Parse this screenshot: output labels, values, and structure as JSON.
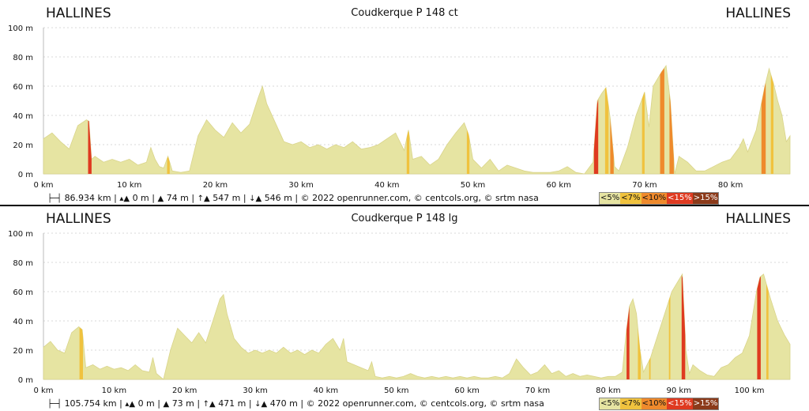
{
  "colors": {
    "fill": "#e6e4a2",
    "stroke": "#d9d48a",
    "grid": "#d8d8d8",
    "axis": "#bbbbbb",
    "grades": [
      "#e6e4a2",
      "#f0c23e",
      "#ef8a2c",
      "#df3a20",
      "#8b3a1a"
    ]
  },
  "legend": [
    {
      "label": "<5%",
      "color": "#e6e4a2",
      "text_color": "#111111"
    },
    {
      "label": "<7%",
      "color": "#f0c23e",
      "text_color": "#111111"
    },
    {
      "label": "<10%",
      "color": "#ef8a2c",
      "text_color": "#111111"
    },
    {
      "label": "<15%",
      "color": "#df3a20",
      "text_color": "#ffffff"
    },
    {
      "label": ">15%",
      "color": "#8b3a1a",
      "text_color": "#ffffff"
    }
  ],
  "chart_data": [
    {
      "type": "area",
      "title": "Coudkerque P 148 ct",
      "start_label": "HALLINES",
      "end_label": "HALLINES",
      "xlim": [
        0,
        86.934
      ],
      "ylim": [
        0,
        100
      ],
      "x_ticks": [
        0,
        10,
        20,
        30,
        40,
        50,
        60,
        70,
        80
      ],
      "x_tick_labels": [
        "0 km",
        "10 km",
        "20 km",
        "30 km",
        "40 km",
        "50 km",
        "60 km",
        "70 km",
        "80 km"
      ],
      "y_ticks": [
        0,
        20,
        40,
        60,
        80,
        100
      ],
      "y_tick_labels": [
        "0 m",
        "20 m",
        "40 m",
        "60 m",
        "80 m",
        "100 m"
      ],
      "grid": true,
      "profile": [
        [
          0,
          24
        ],
        [
          1,
          28
        ],
        [
          2,
          22
        ],
        [
          3,
          17
        ],
        [
          4,
          33
        ],
        [
          5,
          37
        ],
        [
          5.3,
          36
        ],
        [
          5.6,
          10
        ],
        [
          6,
          12
        ],
        [
          7,
          8
        ],
        [
          8,
          10
        ],
        [
          9,
          8
        ],
        [
          10,
          10
        ],
        [
          11,
          6
        ],
        [
          12,
          8
        ],
        [
          12.5,
          18
        ],
        [
          13,
          10
        ],
        [
          13.5,
          5
        ],
        [
          14,
          4
        ],
        [
          14.5,
          12
        ],
        [
          15,
          2
        ],
        [
          16,
          1
        ],
        [
          17,
          2
        ],
        [
          18,
          26
        ],
        [
          19,
          37
        ],
        [
          20,
          30
        ],
        [
          21,
          25
        ],
        [
          22,
          35
        ],
        [
          23,
          28
        ],
        [
          24,
          34
        ],
        [
          25,
          52
        ],
        [
          25.5,
          60
        ],
        [
          26,
          48
        ],
        [
          27,
          35
        ],
        [
          28,
          22
        ],
        [
          29,
          20
        ],
        [
          30,
          22
        ],
        [
          31,
          18
        ],
        [
          32,
          20
        ],
        [
          33,
          17
        ],
        [
          34,
          20
        ],
        [
          35,
          18
        ],
        [
          36,
          22
        ],
        [
          37,
          17
        ],
        [
          38,
          18
        ],
        [
          39,
          20
        ],
        [
          40,
          24
        ],
        [
          41,
          28
        ],
        [
          42,
          16
        ],
        [
          42.5,
          30
        ],
        [
          43,
          10
        ],
        [
          44,
          12
        ],
        [
          45,
          6
        ],
        [
          46,
          10
        ],
        [
          47,
          20
        ],
        [
          48,
          28
        ],
        [
          49,
          35
        ],
        [
          49.5,
          27
        ],
        [
          50,
          10
        ],
        [
          51,
          4
        ],
        [
          52,
          10
        ],
        [
          53,
          2
        ],
        [
          54,
          6
        ],
        [
          55,
          4
        ],
        [
          56,
          2
        ],
        [
          57,
          1
        ],
        [
          58,
          1
        ],
        [
          59,
          1
        ],
        [
          60,
          2
        ],
        [
          61,
          5
        ],
        [
          62,
          1
        ],
        [
          63,
          0
        ],
        [
          64,
          8
        ],
        [
          64.5,
          50
        ],
        [
          65,
          55
        ],
        [
          65.5,
          59
        ],
        [
          66,
          38
        ],
        [
          66.5,
          5
        ],
        [
          67,
          2
        ],
        [
          68,
          18
        ],
        [
          69,
          40
        ],
        [
          70,
          56
        ],
        [
          70.5,
          32
        ],
        [
          71,
          60
        ],
        [
          72,
          70
        ],
        [
          72.5,
          74
        ],
        [
          73,
          50
        ],
        [
          73.5,
          0
        ],
        [
          74,
          12
        ],
        [
          75,
          8
        ],
        [
          76,
          2
        ],
        [
          77,
          2
        ],
        [
          78,
          5
        ],
        [
          79,
          8
        ],
        [
          80,
          10
        ],
        [
          81,
          18
        ],
        [
          81.5,
          24
        ],
        [
          82,
          15
        ],
        [
          83,
          30
        ],
        [
          84,
          60
        ],
        [
          84.5,
          72
        ],
        [
          85,
          62
        ],
        [
          85.5,
          50
        ],
        [
          86,
          40
        ],
        [
          86.5,
          22
        ],
        [
          86.934,
          26
        ]
      ],
      "grade_segments": [
        {
          "x": [
            5.2,
            5.6
          ],
          "grade": 3
        },
        {
          "x": [
            14.4,
            14.7
          ],
          "grade": 1
        },
        {
          "x": [
            42.3,
            42.6
          ],
          "grade": 1
        },
        {
          "x": [
            49.3,
            49.6
          ],
          "grade": 1
        },
        {
          "x": [
            64.1,
            64.6
          ],
          "grade": 3
        },
        {
          "x": [
            65.4,
            65.8
          ],
          "grade": 1
        },
        {
          "x": [
            66,
            66.4
          ],
          "grade": 2
        },
        {
          "x": [
            69.7,
            70.0
          ],
          "grade": 1
        },
        {
          "x": [
            71.8,
            72.3
          ],
          "grade": 2
        },
        {
          "x": [
            72.9,
            73.4
          ],
          "grade": 2
        },
        {
          "x": [
            83.6,
            84.1
          ],
          "grade": 2
        },
        {
          "x": [
            84.7,
            85.0
          ],
          "grade": 1
        }
      ],
      "stats": {
        "distance": "86.934 km",
        "min": "0 m",
        "max": "74 m",
        "ascent": "547 m",
        "descent": "546 m",
        "credits": "© 2022 openrunner.com, © centcols.org, © srtm nasa"
      }
    },
    {
      "type": "area",
      "title": "Coudkerque P 148 lg",
      "start_label": "HALLINES",
      "end_label": "HALLINES",
      "xlim": [
        0,
        105.754
      ],
      "ylim": [
        0,
        100
      ],
      "x_ticks": [
        0,
        10,
        20,
        30,
        40,
        50,
        60,
        70,
        80,
        90,
        100
      ],
      "x_tick_labels": [
        "0 km",
        "10 km",
        "20 km",
        "30 km",
        "40 km",
        "50 km",
        "60 km",
        "70 km",
        "80 km",
        "90 km",
        "100 km"
      ],
      "y_ticks": [
        0,
        20,
        40,
        60,
        80,
        100
      ],
      "y_tick_labels": [
        "0 m",
        "20 m",
        "40 m",
        "60 m",
        "80 m",
        "100 m"
      ],
      "grid": true,
      "profile": [
        [
          0,
          22
        ],
        [
          1,
          26
        ],
        [
          2,
          20
        ],
        [
          3,
          18
        ],
        [
          4,
          32
        ],
        [
          5,
          36
        ],
        [
          5.5,
          34
        ],
        [
          6,
          8
        ],
        [
          7,
          10
        ],
        [
          8,
          7
        ],
        [
          9,
          9
        ],
        [
          10,
          7
        ],
        [
          11,
          8
        ],
        [
          12,
          6
        ],
        [
          13,
          10
        ],
        [
          14,
          6
        ],
        [
          15,
          5
        ],
        [
          15.5,
          15
        ],
        [
          16,
          4
        ],
        [
          17,
          0
        ],
        [
          18,
          20
        ],
        [
          19,
          35
        ],
        [
          20,
          30
        ],
        [
          21,
          25
        ],
        [
          22,
          32
        ],
        [
          23,
          25
        ],
        [
          24,
          40
        ],
        [
          25,
          55
        ],
        [
          25.5,
          58
        ],
        [
          26,
          45
        ],
        [
          27,
          28
        ],
        [
          28,
          22
        ],
        [
          29,
          18
        ],
        [
          30,
          20
        ],
        [
          31,
          18
        ],
        [
          32,
          20
        ],
        [
          33,
          18
        ],
        [
          34,
          22
        ],
        [
          35,
          18
        ],
        [
          36,
          20
        ],
        [
          37,
          17
        ],
        [
          38,
          20
        ],
        [
          39,
          18
        ],
        [
          40,
          24
        ],
        [
          41,
          28
        ],
        [
          42,
          20
        ],
        [
          42.5,
          28
        ],
        [
          43,
          12
        ],
        [
          44,
          10
        ],
        [
          45,
          8
        ],
        [
          46,
          6
        ],
        [
          46.5,
          12
        ],
        [
          47,
          2
        ],
        [
          48,
          1
        ],
        [
          49,
          2
        ],
        [
          50,
          1
        ],
        [
          51,
          2
        ],
        [
          52,
          4
        ],
        [
          53,
          2
        ],
        [
          54,
          1
        ],
        [
          55,
          2
        ],
        [
          56,
          1
        ],
        [
          57,
          2
        ],
        [
          58,
          1
        ],
        [
          59,
          2
        ],
        [
          60,
          1
        ],
        [
          61,
          2
        ],
        [
          62,
          1
        ],
        [
          63,
          1
        ],
        [
          64,
          2
        ],
        [
          65,
          1
        ],
        [
          66,
          4
        ],
        [
          67,
          14
        ],
        [
          68,
          8
        ],
        [
          69,
          3
        ],
        [
          70,
          5
        ],
        [
          71,
          10
        ],
        [
          72,
          4
        ],
        [
          73,
          6
        ],
        [
          74,
          2
        ],
        [
          75,
          4
        ],
        [
          76,
          2
        ],
        [
          77,
          3
        ],
        [
          78,
          2
        ],
        [
          79,
          1
        ],
        [
          80,
          2
        ],
        [
          81,
          2
        ],
        [
          82,
          5
        ],
        [
          82.5,
          30
        ],
        [
          83,
          50
        ],
        [
          83.5,
          55
        ],
        [
          84,
          45
        ],
        [
          84.5,
          20
        ],
        [
          85,
          5
        ],
        [
          86,
          15
        ],
        [
          87,
          30
        ],
        [
          88,
          45
        ],
        [
          89,
          60
        ],
        [
          90,
          68
        ],
        [
          90.5,
          72
        ],
        [
          91,
          20
        ],
        [
          91.5,
          4
        ],
        [
          92,
          10
        ],
        [
          93,
          6
        ],
        [
          94,
          3
        ],
        [
          95,
          2
        ],
        [
          96,
          8
        ],
        [
          97,
          10
        ],
        [
          98,
          15
        ],
        [
          99,
          18
        ],
        [
          100,
          30
        ],
        [
          101,
          60
        ],
        [
          101.5,
          70
        ],
        [
          102,
          72
        ],
        [
          103,
          55
        ],
        [
          104,
          40
        ],
        [
          105,
          30
        ],
        [
          105.754,
          24
        ]
      ],
      "grade_segments": [
        {
          "x": [
            5.1,
            5.6
          ],
          "grade": 1
        },
        {
          "x": [
            82.6,
            83.0
          ],
          "grade": 3
        },
        {
          "x": [
            84.2,
            84.6
          ],
          "grade": 1
        },
        {
          "x": [
            85.8,
            86.0
          ],
          "grade": 1
        },
        {
          "x": [
            88.6,
            88.8
          ],
          "grade": 1
        },
        {
          "x": [
            90.4,
            90.9
          ],
          "grade": 3
        },
        {
          "x": [
            101.1,
            101.6
          ],
          "grade": 3
        },
        {
          "x": [
            102.4,
            102.7
          ],
          "grade": 1
        }
      ],
      "stats": {
        "distance": "105.754 km",
        "min": "0 m",
        "max": "73 m",
        "ascent": "471 m",
        "descent": "470 m",
        "credits": "© 2022 openrunner.com, © centcols.org, © srtm nasa"
      }
    }
  ]
}
